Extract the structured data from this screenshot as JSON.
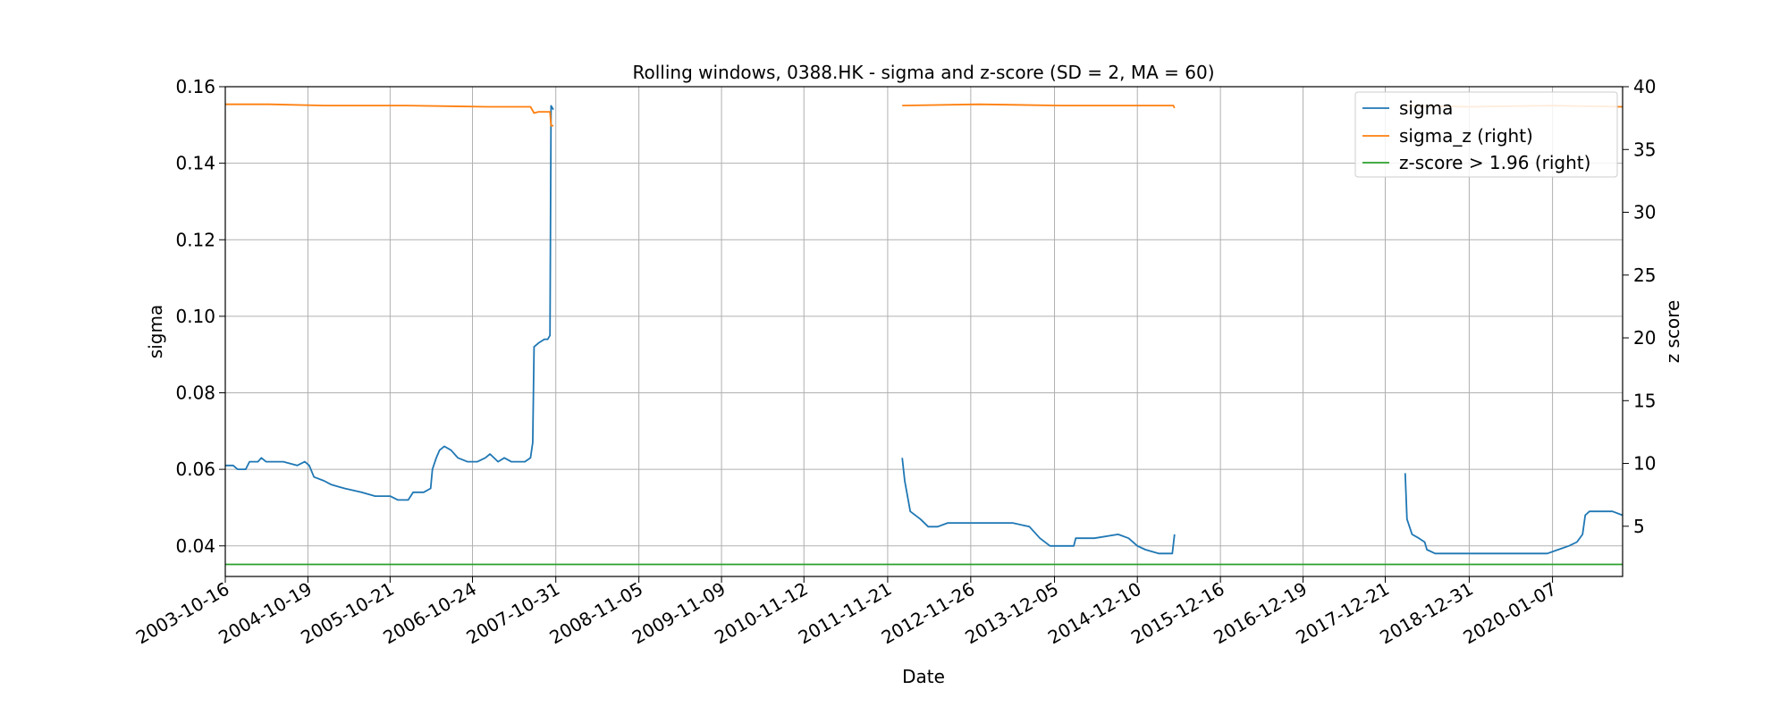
{
  "chart_data": {
    "type": "line",
    "title": "Rolling windows, 0388.HK - sigma and z-score (SD = 2, MA = 60)",
    "xlabel": "Date",
    "ylabel": "sigma",
    "ylabel_right": "z score",
    "xlim": [
      "2003-10-16",
      "2020-11-15"
    ],
    "ylim": [
      0.032,
      0.16
    ],
    "ylim_right": [
      1.0,
      40.0
    ],
    "x_ticks": [
      "2003-10-16",
      "2004-10-19",
      "2005-10-21",
      "2006-10-24",
      "2007-10-31",
      "2008-11-05",
      "2009-11-09",
      "2010-11-12",
      "2011-11-21",
      "2012-11-26",
      "2013-12-05",
      "2014-12-10",
      "2015-12-16",
      "2016-12-19",
      "2017-12-21",
      "2018-12-31",
      "2020-01-07"
    ],
    "y_ticks": [
      "0.04",
      "0.06",
      "0.08",
      "0.10",
      "0.12",
      "0.14",
      "0.16"
    ],
    "y_ticks_right": [
      "5",
      "10",
      "15",
      "20",
      "25",
      "30",
      "35",
      "40"
    ],
    "grid": true,
    "legend_position": "top-right",
    "series": [
      {
        "name": "sigma",
        "axis": "left",
        "color": "#1f77b4",
        "segments": [
          [
            {
              "x": "2003-10-16",
              "y": 0.061
            },
            {
              "x": "2003-11-20",
              "y": 0.061
            },
            {
              "x": "2003-12-10",
              "y": 0.06
            },
            {
              "x": "2004-01-15",
              "y": 0.06
            },
            {
              "x": "2004-02-01",
              "y": 0.062
            },
            {
              "x": "2004-03-10",
              "y": 0.062
            },
            {
              "x": "2004-03-25",
              "y": 0.063
            },
            {
              "x": "2004-04-15",
              "y": 0.062
            },
            {
              "x": "2004-07-01",
              "y": 0.062
            },
            {
              "x": "2004-09-01",
              "y": 0.061
            },
            {
              "x": "2004-10-05",
              "y": 0.062
            },
            {
              "x": "2004-10-25",
              "y": 0.061
            },
            {
              "x": "2004-11-15",
              "y": 0.058
            },
            {
              "x": "2004-12-30",
              "y": 0.057
            },
            {
              "x": "2005-02-01",
              "y": 0.056
            },
            {
              "x": "2005-04-01",
              "y": 0.055
            },
            {
              "x": "2005-06-15",
              "y": 0.054
            },
            {
              "x": "2005-08-15",
              "y": 0.053
            },
            {
              "x": "2005-10-21",
              "y": 0.053
            },
            {
              "x": "2005-11-25",
              "y": 0.052
            },
            {
              "x": "2006-01-10",
              "y": 0.052
            },
            {
              "x": "2006-02-01",
              "y": 0.054
            },
            {
              "x": "2006-03-20",
              "y": 0.054
            },
            {
              "x": "2006-04-20",
              "y": 0.055
            },
            {
              "x": "2006-04-28",
              "y": 0.06
            },
            {
              "x": "2006-05-15",
              "y": 0.063
            },
            {
              "x": "2006-05-30",
              "y": 0.065
            },
            {
              "x": "2006-06-20",
              "y": 0.066
            },
            {
              "x": "2006-07-20",
              "y": 0.065
            },
            {
              "x": "2006-08-20",
              "y": 0.063
            },
            {
              "x": "2006-10-01",
              "y": 0.062
            },
            {
              "x": "2006-11-15",
              "y": 0.062
            },
            {
              "x": "2006-12-20",
              "y": 0.063
            },
            {
              "x": "2007-01-10",
              "y": 0.064
            },
            {
              "x": "2007-02-15",
              "y": 0.062
            },
            {
              "x": "2007-03-15",
              "y": 0.063
            },
            {
              "x": "2007-04-15",
              "y": 0.062
            },
            {
              "x": "2007-06-15",
              "y": 0.062
            },
            {
              "x": "2007-07-10",
              "y": 0.063
            },
            {
              "x": "2007-07-20",
              "y": 0.067
            },
            {
              "x": "2007-07-26",
              "y": 0.092
            },
            {
              "x": "2007-08-15",
              "y": 0.093
            },
            {
              "x": "2007-09-10",
              "y": 0.094
            },
            {
              "x": "2007-09-25",
              "y": 0.094
            },
            {
              "x": "2007-10-05",
              "y": 0.095
            },
            {
              "x": "2007-10-10",
              "y": 0.155
            },
            {
              "x": "2007-10-20",
              "y": 0.154
            }
          ],
          [
            {
              "x": "2012-01-25",
              "y": 0.063
            },
            {
              "x": "2012-02-05",
              "y": 0.057
            },
            {
              "x": "2012-03-01",
              "y": 0.049
            },
            {
              "x": "2012-04-15",
              "y": 0.047
            },
            {
              "x": "2012-05-20",
              "y": 0.045
            },
            {
              "x": "2012-07-01",
              "y": 0.045
            },
            {
              "x": "2012-08-15",
              "y": 0.046
            },
            {
              "x": "2012-10-15",
              "y": 0.046
            },
            {
              "x": "2012-12-20",
              "y": 0.046
            },
            {
              "x": "2013-03-20",
              "y": 0.046
            },
            {
              "x": "2013-06-01",
              "y": 0.046
            },
            {
              "x": "2013-08-15",
              "y": 0.045
            },
            {
              "x": "2013-10-01",
              "y": 0.042
            },
            {
              "x": "2013-11-15",
              "y": 0.04
            },
            {
              "x": "2014-02-01",
              "y": 0.04
            },
            {
              "x": "2014-03-01",
              "y": 0.04
            },
            {
              "x": "2014-03-10",
              "y": 0.042
            },
            {
              "x": "2014-06-01",
              "y": 0.042
            },
            {
              "x": "2014-09-15",
              "y": 0.043
            },
            {
              "x": "2014-11-01",
              "y": 0.042
            },
            {
              "x": "2014-12-10",
              "y": 0.04
            },
            {
              "x": "2015-01-15",
              "y": 0.039
            },
            {
              "x": "2015-03-15",
              "y": 0.038
            },
            {
              "x": "2015-05-15",
              "y": 0.038
            },
            {
              "x": "2015-05-25",
              "y": 0.043
            }
          ],
          [
            {
              "x": "2018-03-20",
              "y": 0.059
            },
            {
              "x": "2018-03-28",
              "y": 0.047
            },
            {
              "x": "2018-04-20",
              "y": 0.043
            },
            {
              "x": "2018-05-20",
              "y": 0.042
            },
            {
              "x": "2018-06-15",
              "y": 0.041
            },
            {
              "x": "2018-06-25",
              "y": 0.039
            },
            {
              "x": "2018-08-01",
              "y": 0.038
            },
            {
              "x": "2019-01-15",
              "y": 0.038
            },
            {
              "x": "2019-07-01",
              "y": 0.038
            },
            {
              "x": "2019-10-01",
              "y": 0.038
            },
            {
              "x": "2019-12-15",
              "y": 0.038
            },
            {
              "x": "2020-02-01",
              "y": 0.039
            },
            {
              "x": "2020-03-20",
              "y": 0.04
            },
            {
              "x": "2020-04-25",
              "y": 0.041
            },
            {
              "x": "2020-05-20",
              "y": 0.043
            },
            {
              "x": "2020-06-01",
              "y": 0.048
            },
            {
              "x": "2020-06-20",
              "y": 0.049
            },
            {
              "x": "2020-09-10",
              "y": 0.049
            },
            {
              "x": "2020-10-01",
              "y": 0.049
            },
            {
              "x": "2020-11-15",
              "y": 0.048
            }
          ]
        ]
      },
      {
        "name": "sigma_z (right)",
        "axis": "right",
        "color": "#ff7f0e",
        "segments": [
          [
            {
              "x": "2003-10-16",
              "y": 38.6
            },
            {
              "x": "2004-05-01",
              "y": 38.6
            },
            {
              "x": "2005-01-01",
              "y": 38.5
            },
            {
              "x": "2006-01-01",
              "y": 38.5
            },
            {
              "x": "2007-01-01",
              "y": 38.4
            },
            {
              "x": "2007-07-10",
              "y": 38.4
            },
            {
              "x": "2007-07-26",
              "y": 37.9
            },
            {
              "x": "2007-08-15",
              "y": 38.0
            },
            {
              "x": "2007-10-05",
              "y": 38.0
            },
            {
              "x": "2007-10-10",
              "y": 36.9
            },
            {
              "x": "2007-10-20",
              "y": 36.9
            }
          ],
          [
            {
              "x": "2012-01-25",
              "y": 38.5
            },
            {
              "x": "2013-01-01",
              "y": 38.6
            },
            {
              "x": "2014-01-01",
              "y": 38.5
            },
            {
              "x": "2015-01-01",
              "y": 38.5
            },
            {
              "x": "2015-05-20",
              "y": 38.5
            },
            {
              "x": "2015-05-25",
              "y": 38.3
            }
          ],
          [
            {
              "x": "2018-03-20",
              "y": 38.5
            },
            {
              "x": "2019-01-01",
              "y": 38.4
            },
            {
              "x": "2020-01-01",
              "y": 38.5
            },
            {
              "x": "2020-11-15",
              "y": 38.4
            }
          ]
        ]
      },
      {
        "name": "z-score > 1.96 (right)",
        "axis": "right",
        "color": "#2ca02c",
        "segments": [
          [
            {
              "x": "2003-10-16",
              "y": 1.96
            },
            {
              "x": "2020-11-15",
              "y": 1.96
            }
          ]
        ]
      }
    ]
  }
}
